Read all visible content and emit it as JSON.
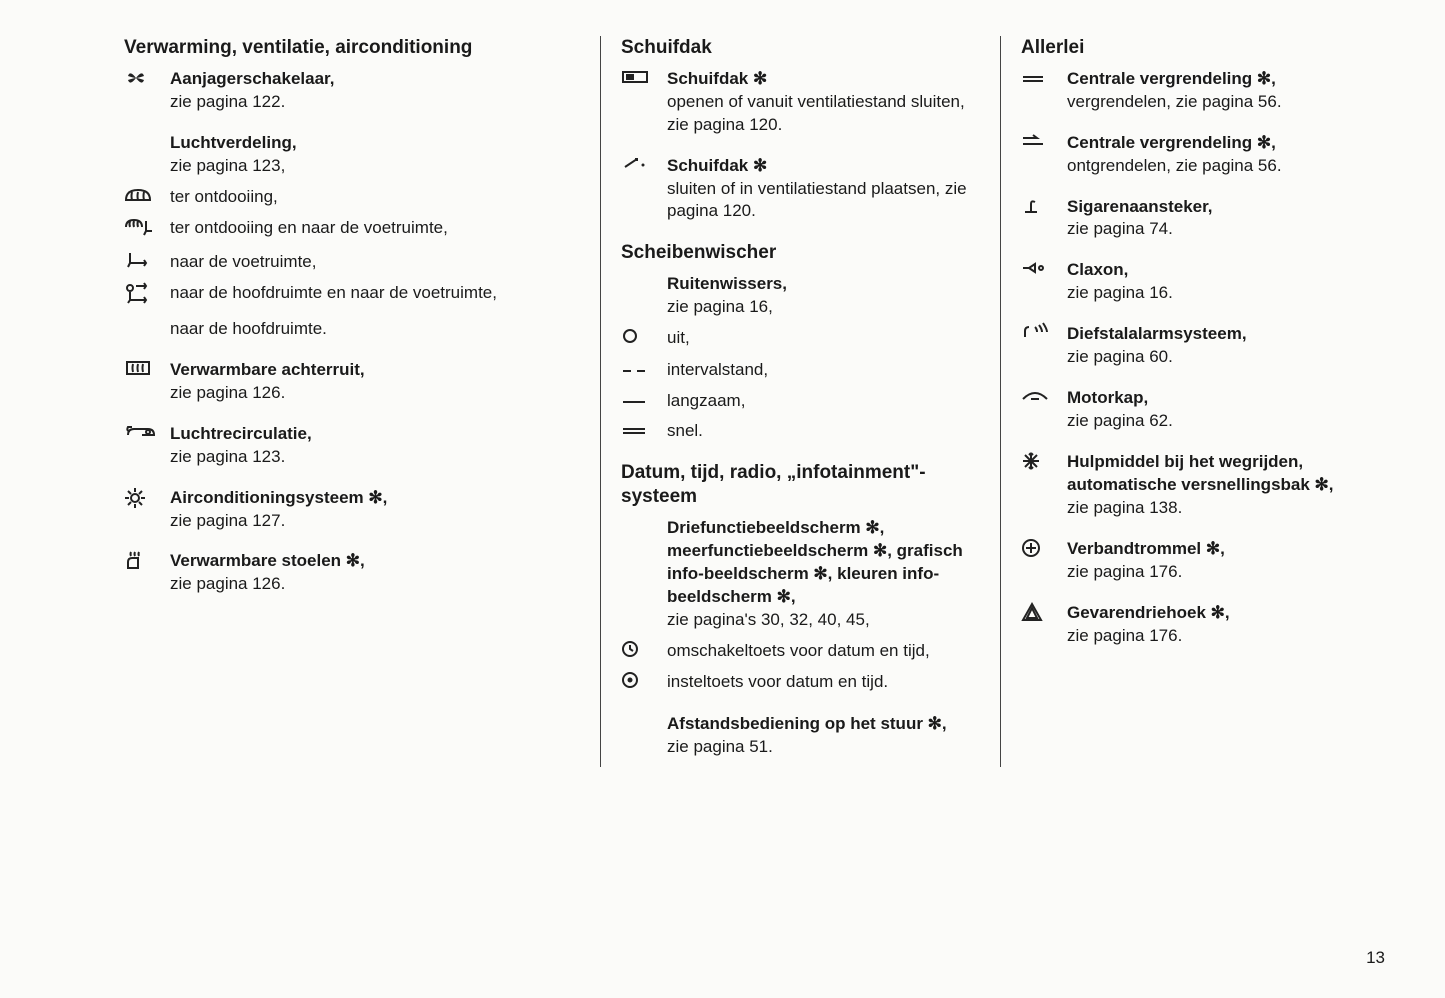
{
  "pageNumber": "13",
  "col1": {
    "heading": "Verwarming, ventilatie, airconditioning",
    "items": [
      {
        "icon": "fan",
        "bold": "Aanjagerschakelaar,",
        "rest": "zie pagina 122."
      },
      {
        "icon": "",
        "bold": "Luchtverdeling,",
        "rest": "zie pagina 123,",
        "topMargin": true
      },
      {
        "icon": "defrost-front",
        "bold": "",
        "rest": "ter ontdooiing,"
      },
      {
        "icon": "defrost-foot",
        "bold": "",
        "rest": "ter ontdooiing en naar de voetruimte,"
      },
      {
        "icon": "foot",
        "bold": "",
        "rest": "naar de voetruimte,"
      },
      {
        "icon": "head-foot",
        "bold": "",
        "rest": "naar de hoofdruimte en naar de voetruimte,"
      },
      {
        "icon": "head",
        "bold": "",
        "rest": "naar de hoofdruimte.",
        "hideIcon": true
      },
      {
        "icon": "rear-defrost",
        "bold": "Verwarmbare achterruit,",
        "rest": "zie pagina 126.",
        "topMargin": true
      },
      {
        "icon": "recirc",
        "bold": "Luchtrecirculatie,",
        "rest": "zie pagina 123.",
        "topMargin": true
      },
      {
        "icon": "ac",
        "bold": "Airconditioningsysteem ✻,",
        "rest": "zie pagina 127.",
        "topMargin": true
      },
      {
        "icon": "seat-heat",
        "bold": "Verwarmbare stoelen ✻,",
        "rest": "zie pagina 126.",
        "topMargin": true
      }
    ]
  },
  "col2": {
    "sections": [
      {
        "heading": "Schuifdak",
        "items": [
          {
            "icon": "sunroof-open",
            "bold": "Schuifdak ✻",
            "rest": "openen of vanuit ventilatiestand sluiten, zie pagina 120."
          },
          {
            "icon": "sunroof-close",
            "bold": "Schuifdak ✻",
            "rest": "sluiten of in ventilatiestand plaatsen, zie pagina 120.",
            "topMargin": true
          }
        ]
      },
      {
        "heading": "Scheibenwischer",
        "items": [
          {
            "icon": "",
            "bold": "Ruitenwissers,",
            "rest": "zie pagina 16,"
          },
          {
            "icon": "circle",
            "bold": "",
            "rest": "uit,"
          },
          {
            "icon": "dashes",
            "bold": "",
            "rest": "intervalstand,"
          },
          {
            "icon": "line1",
            "bold": "",
            "rest": "langzaam,"
          },
          {
            "icon": "line2",
            "bold": "",
            "rest": "snel."
          }
        ]
      },
      {
        "heading": "Datum, tijd, radio, „infotainment\"-systeem",
        "items": [
          {
            "icon": "",
            "bold": "Driefunctiebeeldscherm ✻, meerfunctiebeeldscherm ✻, grafisch info-beeldscherm ✻, kleuren info-beeldscherm ✻,",
            "rest": "zie pagina's 30, 32, 40, 45,"
          },
          {
            "icon": "clock",
            "bold": "",
            "rest": "omschakeltoets voor datum en tijd,"
          },
          {
            "icon": "dot-circle",
            "bold": "",
            "rest": "insteltoets voor datum en tijd."
          },
          {
            "icon": "",
            "bold": "Afstandsbediening op het stuur ✻,",
            "rest": "zie pagina 51.",
            "topMargin": true
          }
        ]
      }
    ]
  },
  "col3": {
    "heading": "Allerlei",
    "items": [
      {
        "icon": "equals",
        "bold": "Centrale vergrendeling ✻,",
        "rest": "vergrendelen, zie pagina 56."
      },
      {
        "icon": "unlock-lines",
        "bold": "Centrale vergrendeling ✻,",
        "rest": "ontgrendelen, zie pagina 56.",
        "topMargin": true
      },
      {
        "icon": "lighter",
        "bold": "Sigarenaansteker,",
        "rest": "zie pagina 74.",
        "topMargin": true
      },
      {
        "icon": "horn",
        "bold": "Claxon,",
        "rest": "zie pagina 16.",
        "topMargin": true
      },
      {
        "icon": "alarm",
        "bold": "Diefstalalarmsysteem,",
        "rest": "zie pagina 60.",
        "topMargin": true
      },
      {
        "icon": "hood",
        "bold": "Motorkap,",
        "rest": "zie pagina 62.",
        "topMargin": true
      },
      {
        "icon": "snowflake",
        "bold": "Hulpmiddel bij het wegrijden, automatische versnellingsbak ✻,",
        "rest": "zie pagina 138.",
        "topMargin": true
      },
      {
        "icon": "firstaid",
        "bold": "Verbandtrommel ✻,",
        "rest": "zie pagina 176.",
        "topMargin": true
      },
      {
        "icon": "triangle",
        "bold": "Gevarendriehoek ✻,",
        "rest": "zie pagina 176.",
        "topMargin": true
      }
    ]
  },
  "icons": {
    "fan": "✱",
    "defrost-front": "⬚",
    "defrost-foot": "⬚",
    "foot": "↳",
    "head-foot": "↕",
    "head": "→",
    "rear-defrost": "▭",
    "recirc": "↻",
    "ac": "❄",
    "seat-heat": "♨",
    "sunroof-open": "▭",
    "sunroof-close": "↗",
    "circle": "○",
    "dashes": "– –",
    "line1": "—",
    "line2": "═",
    "clock": "◷",
    "dot-circle": "⊙",
    "equals": "═",
    "unlock-lines": "⇌",
    "lighter": "⚲",
    "horn": "⊷",
    "alarm": "⚠",
    "hood": "⬳",
    "snowflake": "❊",
    "firstaid": "⊕",
    "triangle": "△"
  }
}
